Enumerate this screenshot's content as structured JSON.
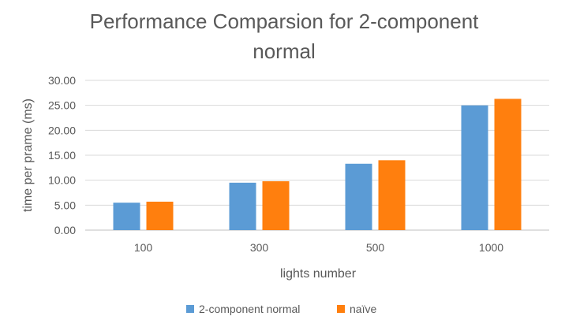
{
  "chart_data": {
    "type": "bar",
    "title": "Performance Comparsion for 2-component normal",
    "title_lines": [
      "Performance Comparsion for 2-component",
      "normal"
    ],
    "xlabel": "lights number",
    "ylabel": "time per prame (ms)",
    "categories": [
      "100",
      "300",
      "500",
      "1000"
    ],
    "series": [
      {
        "name": "2-component normal",
        "color": "#5B9BD5",
        "values": [
          5.5,
          9.5,
          13.3,
          25.0
        ]
      },
      {
        "name": "naïve",
        "color": "#FF7F0E",
        "values": [
          5.7,
          9.8,
          14.0,
          26.3
        ]
      }
    ],
    "ylim": [
      0,
      30
    ],
    "yticks": [
      "0.00",
      "5.00",
      "10.00",
      "15.00",
      "20.00",
      "25.00",
      "30.00"
    ],
    "grid": true,
    "legend_position": "bottom"
  }
}
